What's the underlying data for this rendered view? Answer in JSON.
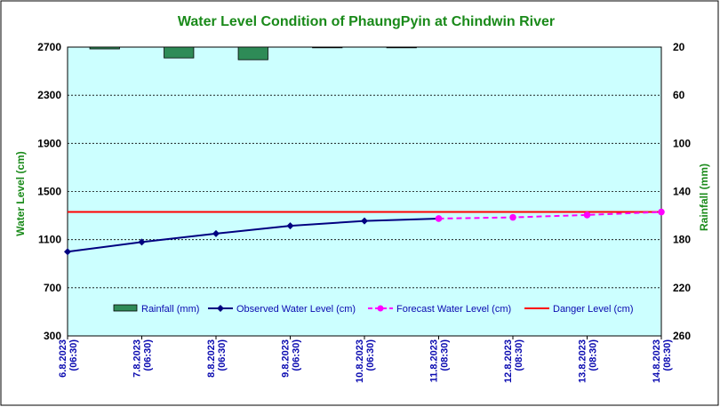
{
  "chart_data": {
    "type": "bar+line",
    "title": "Water Level Condition of PhaungPyin at Chindwin River",
    "y_left": {
      "label": "Water Level (cm)",
      "ticks": [
        "300",
        "700",
        "1100",
        "1500",
        "1900",
        "2300",
        "2700"
      ],
      "range": [
        300,
        2700
      ]
    },
    "y_right": {
      "label": "Rainfall (mm)",
      "ticks": [
        "20",
        "60",
        "100",
        "140",
        "180",
        "220",
        "260"
      ],
      "range": [
        20,
        260
      ],
      "inverted": true
    },
    "x_labels": [
      [
        "6.8.2023",
        "(06:30)"
      ],
      [
        "7.8.2023",
        "(06:30)"
      ],
      [
        "8.8.2023",
        "(06:30)"
      ],
      [
        "9.8.2023",
        "(06:30)"
      ],
      [
        "10.8.2023",
        "(06:30)"
      ],
      [
        "11.8.2023",
        "(08:30)"
      ],
      [
        "12.8.2023",
        "(08:30)"
      ],
      [
        "13.8.2023",
        "(08:30)"
      ],
      [
        "14.8.2023",
        "(08:30)"
      ]
    ],
    "series": [
      {
        "name": "Rainfall (mm)",
        "type": "bar",
        "axis": "right",
        "color": "#2e8b57",
        "values": [
          [
            0.5,
            21.5
          ],
          [
            1.5,
            29
          ],
          [
            2.5,
            30.5
          ],
          [
            3.5,
            0
          ],
          [
            4.5,
            0
          ]
        ]
      },
      {
        "name": "Observed Water Level (cm)",
        "type": "line",
        "axis": "left",
        "color": "#000080",
        "x": [
          0,
          1,
          2,
          3,
          4,
          5
        ],
        "values": [
          1000,
          1080,
          1150,
          1215,
          1255,
          1275
        ]
      },
      {
        "name": "Forecast Water Level (cm)",
        "type": "line",
        "dashed": true,
        "axis": "left",
        "color": "#ff00ff",
        "x": [
          5,
          6,
          7,
          8
        ],
        "values": [
          1275,
          1285,
          1305,
          1330
        ]
      },
      {
        "name": "Danger Level (cm)",
        "type": "hline",
        "axis": "left",
        "color": "#ff0000",
        "value": 1330
      }
    ],
    "colors": {
      "plot_bg": "#ccffff",
      "grid": "#000000",
      "left_tick": "#000000",
      "right_tick": "#000000",
      "axis_title": "#1a8a1a",
      "x_tick": "#0a0ab0"
    },
    "legend_position": "bottom-center",
    "grid": "horizontal-dashed"
  }
}
